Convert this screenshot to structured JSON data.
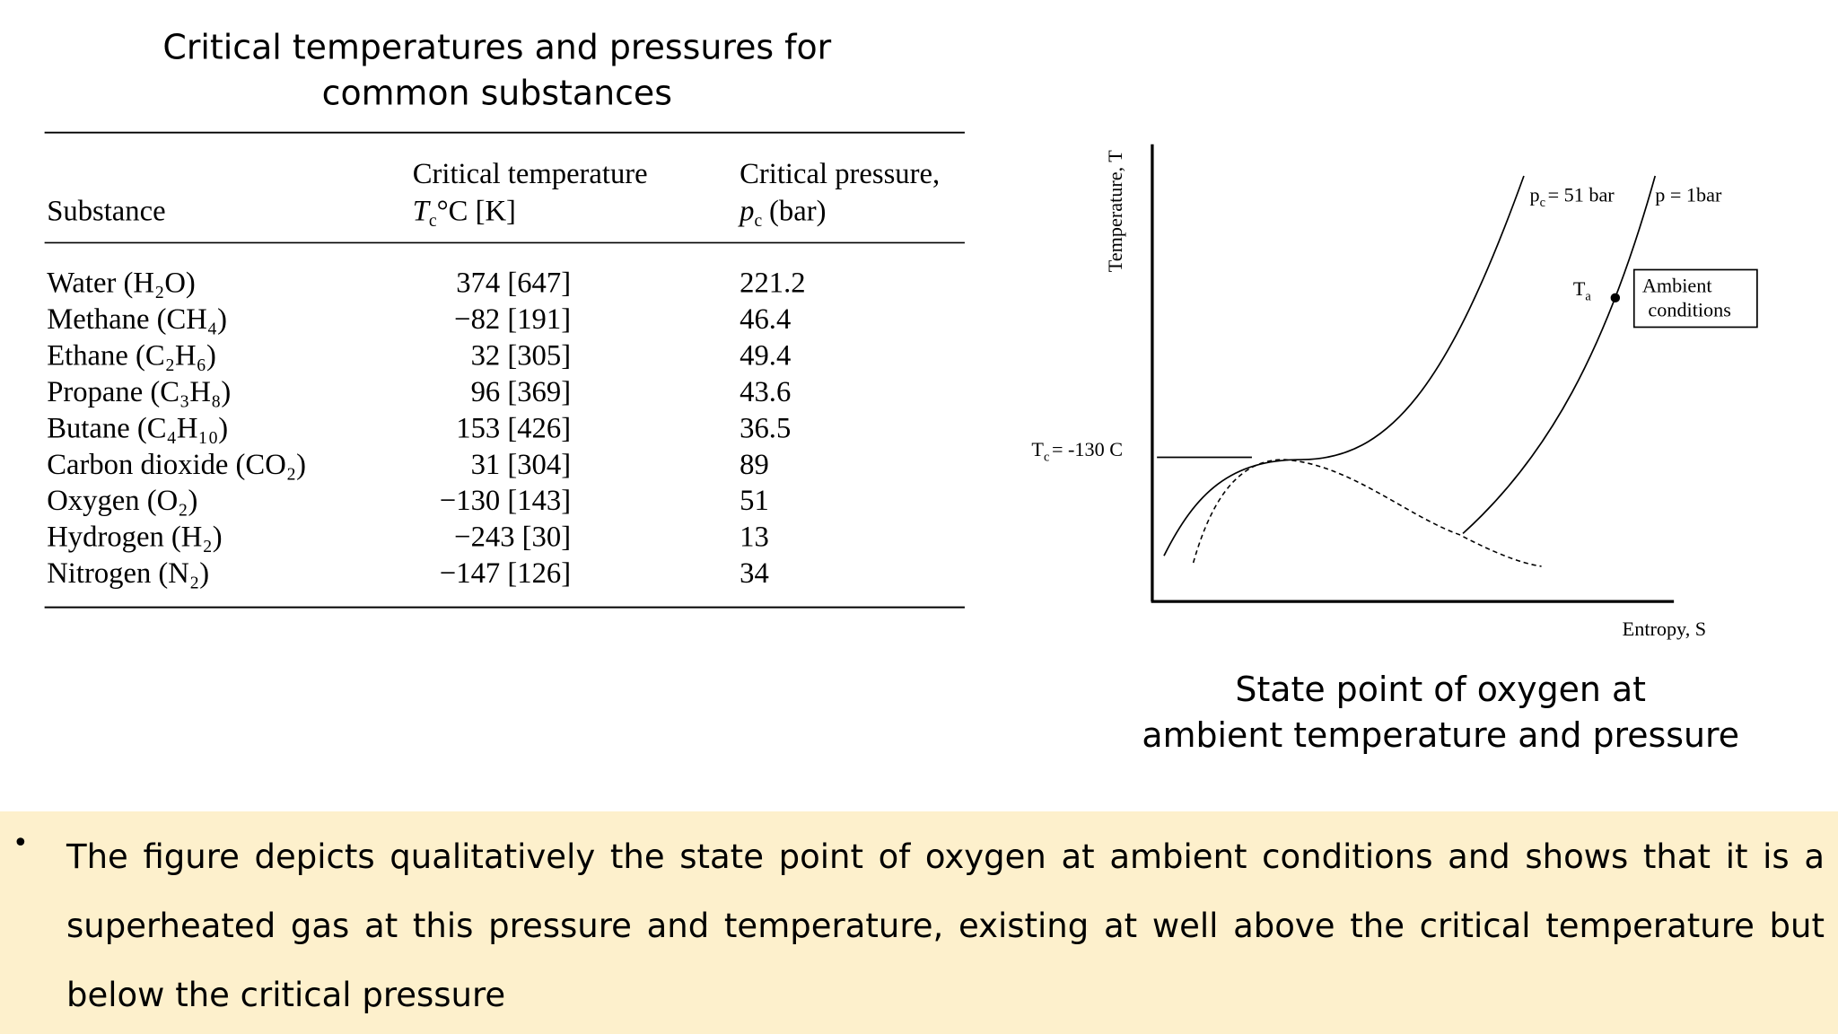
{
  "table": {
    "title": [
      "Critical temperatures and pressures for",
      "common substances"
    ],
    "headers": {
      "substance": "Substance",
      "temperature": {
        "line1": "Critical temperature",
        "symbol": "T",
        "sub": "c",
        "unit": "°C [K]"
      },
      "pressure": {
        "line1": "Critical pressure,",
        "symbol": "p",
        "sub": "c",
        "unit": "(bar)"
      }
    },
    "rows": [
      [
        "Water (H₂O)",
        "374 [647]",
        "221.2"
      ],
      [
        "Methane (CH₄)",
        "−82 [191]",
        "46.4"
      ],
      [
        "Ethane (C₂H₆)",
        "32 [305]",
        "49.4"
      ],
      [
        "Propane (C₃H₈)",
        "96 [369]",
        "43.6"
      ],
      [
        "Butane (C₄H₁₀)",
        "153 [426]",
        "36.5"
      ],
      [
        "Carbon dioxide (CO₂)",
        "31 [304]",
        "89"
      ],
      [
        "Oxygen (O₂)",
        "−130 [143]",
        "51"
      ],
      [
        "Hydrogen (H₂)",
        "−243 [30]",
        "13"
      ],
      [
        "Nitrogen (N₂)",
        "−147 [126]",
        "34"
      ]
    ]
  },
  "diagram": {
    "y_axis_label": "Temperature, T",
    "x_axis_label": "Entropy, S",
    "critical_temperature": {
      "symbol": "T",
      "sub": "c",
      "text": "= -130 C"
    },
    "critical_isobar": {
      "symbol": "p",
      "sub": "c",
      "text": "= 51 bar"
    },
    "ambient_isobar": "p = 1bar",
    "state_point": {
      "symbol": "T",
      "sub": "a"
    },
    "box_label": [
      "Ambient",
      "conditions"
    ]
  },
  "caption": [
    "State point of oxygen at",
    "ambient temperature and pressure"
  ],
  "bullet": "The figure depicts qualitatively the state point of oxygen at ambient conditions and shows that it is a superheated gas at this pressure and temperature, existing at well above the critical temperature but below the critical pressure"
}
